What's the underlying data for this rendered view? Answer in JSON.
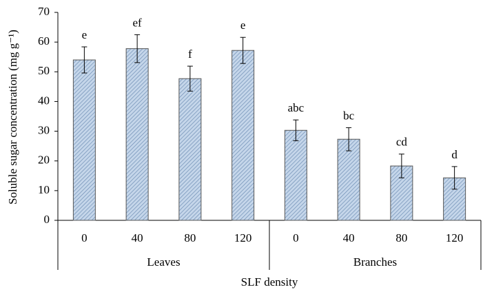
{
  "chart_data": {
    "type": "bar",
    "y_label": "Soluble sugar concentration (mg g⁻¹)",
    "x_label": "SLF density",
    "color": "#c5d6ea",
    "hatch_color": "#6f8fb5",
    "ylim": [
      0,
      70
    ],
    "yticks": [
      0,
      10,
      20,
      30,
      40,
      50,
      60,
      70
    ],
    "groups": [
      {
        "name": "Leaves",
        "categories": [
          "0",
          "40",
          "80",
          "120"
        ],
        "values": [
          54,
          57.8,
          47.7,
          57.2
        ],
        "errors": [
          4.4,
          4.7,
          4.2,
          4.4
        ],
        "letters": [
          "e",
          "ef",
          "f",
          "e"
        ]
      },
      {
        "name": "Branches",
        "categories": [
          "0",
          "40",
          "80",
          "120"
        ],
        "values": [
          30.3,
          27.3,
          18.3,
          14.3
        ],
        "errors": [
          3.5,
          3.9,
          4,
          3.8
        ],
        "letters": [
          "abc",
          "bc",
          "cd",
          "d"
        ]
      }
    ]
  }
}
